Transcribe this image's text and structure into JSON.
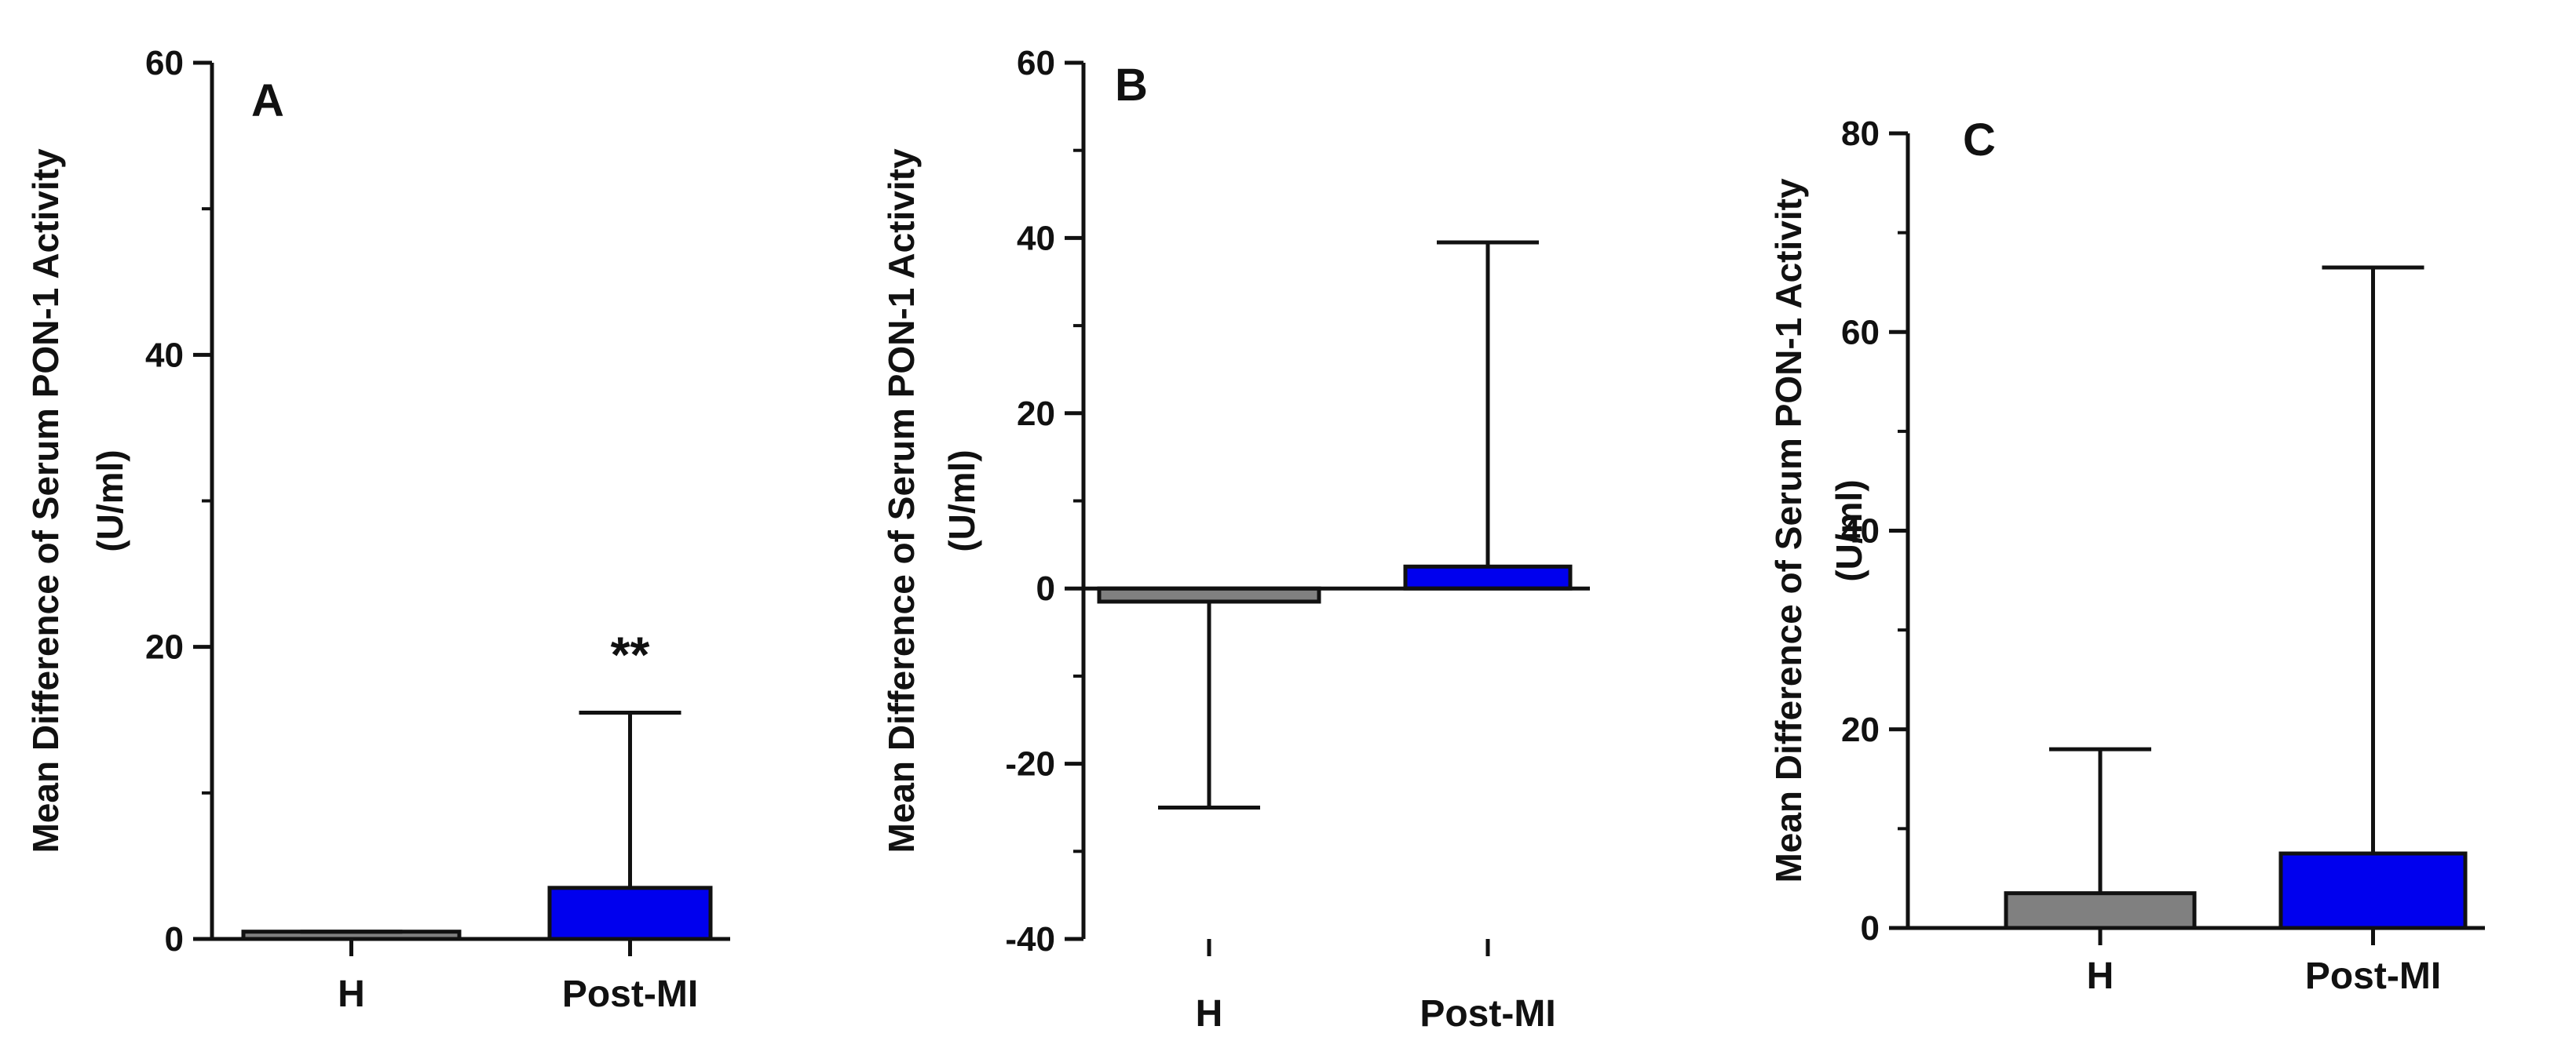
{
  "chart_data": [
    {
      "panel": "A",
      "type": "bar",
      "ylabel": [
        "Mean Difference of Serum PON-1 Activity",
        "(U/ml)"
      ],
      "categories": [
        "H",
        "Post-MI"
      ],
      "values": [
        0.5,
        3.5
      ],
      "error_upper": [
        0.5,
        15.5
      ],
      "ylim": [
        0,
        60
      ],
      "yticks": [
        0,
        20,
        40,
        60
      ],
      "ytick_labels": [
        "0",
        "20",
        "40",
        "60"
      ],
      "annotations": [
        {
          "category": "Post-MI",
          "text": "**"
        }
      ],
      "colors": [
        "#808080",
        "#0000ee"
      ]
    },
    {
      "panel": "B",
      "type": "bar",
      "ylabel": [
        "Mean Difference of Serum PON-1 Activity",
        "(U/ml)"
      ],
      "categories": [
        "H",
        "Post-MI"
      ],
      "values": [
        -1.5,
        2.5
      ],
      "error_bound": [
        -25,
        39.5
      ],
      "ylim": [
        -40,
        60
      ],
      "yticks": [
        -40,
        -20,
        0,
        20,
        40,
        60
      ],
      "ytick_labels": [
        "-40",
        "-20",
        "0",
        "20",
        "40",
        "60"
      ],
      "annotations": [],
      "colors": [
        "#808080",
        "#0000ee"
      ]
    },
    {
      "panel": "C",
      "type": "bar",
      "ylabel": [
        "Mean Difference of Serum PON-1 Activity",
        "(U/ml)"
      ],
      "categories": [
        "H",
        "Post-MI"
      ],
      "values": [
        3.5,
        7.5
      ],
      "error_upper": [
        18,
        66.5
      ],
      "ylim": [
        0,
        80
      ],
      "yticks": [
        0,
        20,
        40,
        60,
        80
      ],
      "ytick_labels": [
        "0",
        "20",
        "40",
        "60",
        "80"
      ],
      "annotations": [],
      "colors": [
        "#808080",
        "#0000ee"
      ]
    }
  ]
}
